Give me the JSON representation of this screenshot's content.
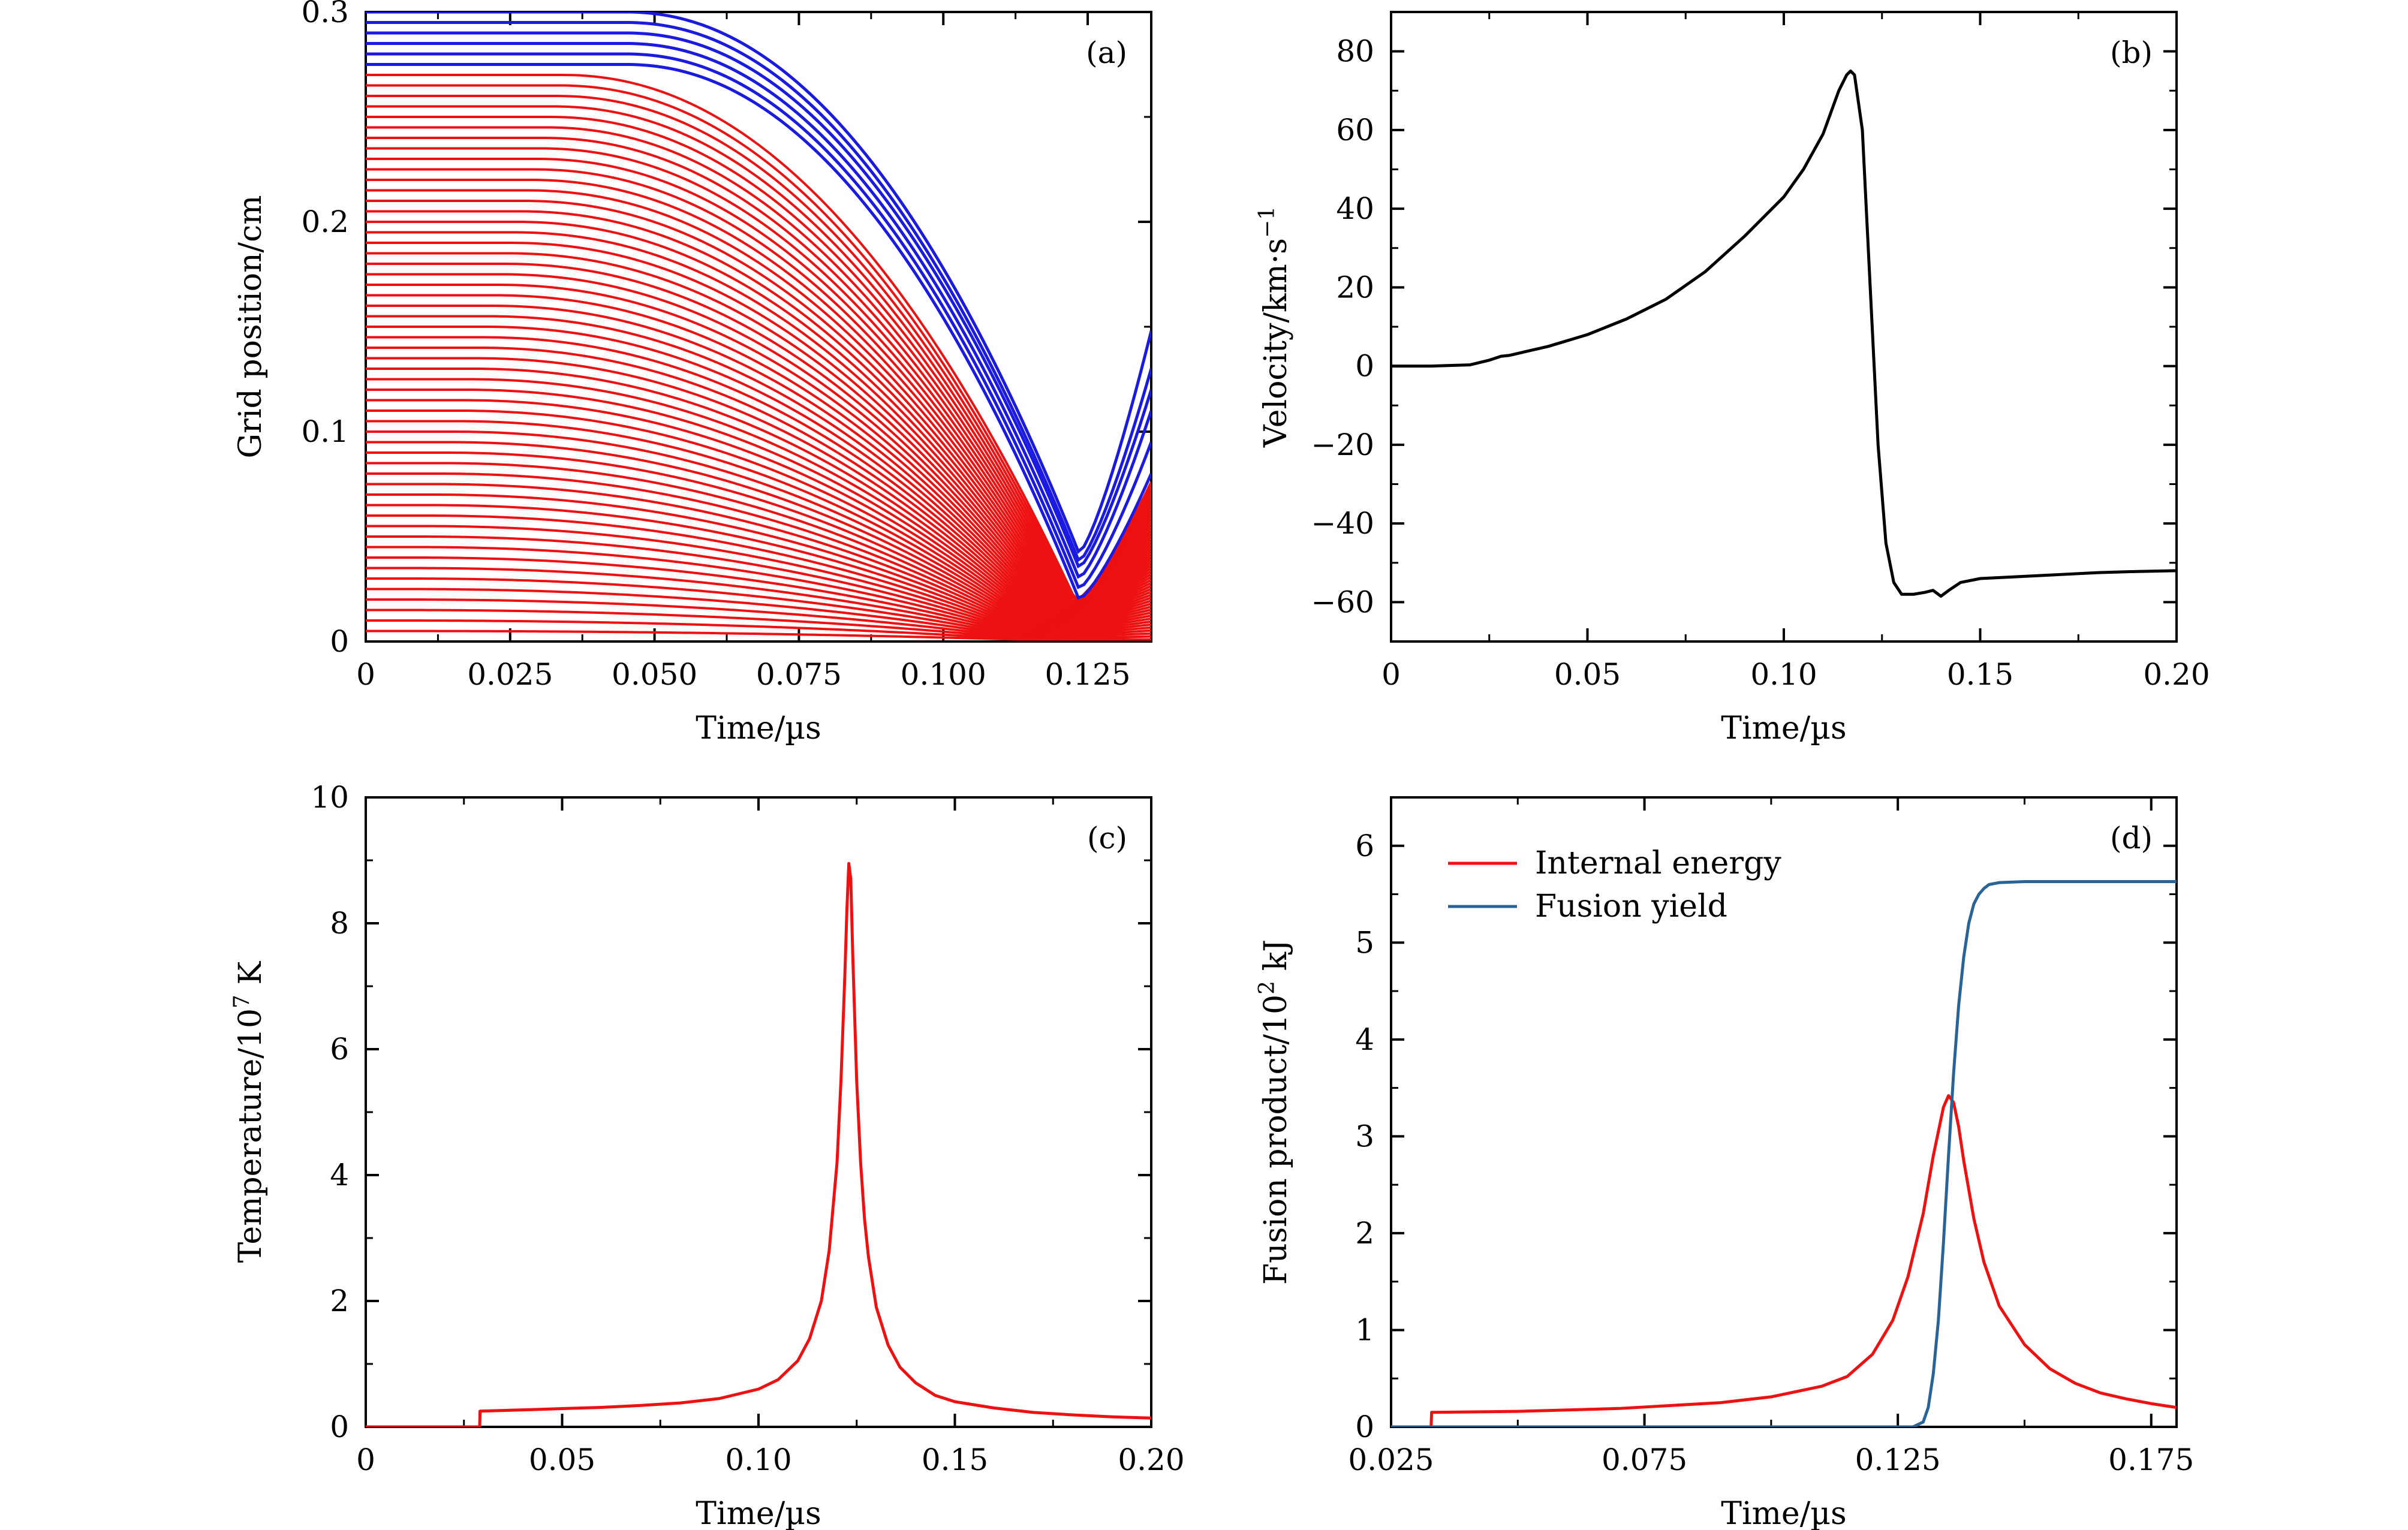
{
  "colors": {
    "red": "#ee1111",
    "blue": "#1a1ae0",
    "black": "#000000",
    "steel_blue": "#2a6496"
  },
  "chart_data": [
    {
      "id": "a",
      "panel_label": "(a)",
      "type": "line",
      "xlabel": "Time/µs",
      "ylabel": "Grid position/cm",
      "xlim": [
        0,
        0.136
      ],
      "ylim": [
        0,
        0.3
      ],
      "xticks": [
        0,
        0.025,
        0.05,
        0.075,
        0.1,
        0.125
      ],
      "xtick_labels": [
        "0",
        "0.025",
        "0.050",
        "0.075",
        "0.100",
        "0.125"
      ],
      "yticks": [
        0,
        0.1,
        0.2,
        0.3
      ],
      "ytick_labels": [
        "0",
        "0.1",
        "0.2",
        "0.3"
      ],
      "grid": false,
      "families": [
        {
          "color": "blue",
          "description_only": true,
          "initial_positions": [
            0.275,
            0.28,
            0.285,
            0.29,
            0.295,
            0.3
          ],
          "min_time": 0.1235,
          "min_positions": [
            0.02,
            0.025,
            0.03,
            0.035,
            0.038,
            0.042
          ],
          "end_positions": [
            0.08,
            0.095,
            0.11,
            0.12,
            0.13,
            0.148
          ]
        },
        {
          "color": "red",
          "initial_positions_range": [
            0.005,
            0.27
          ],
          "line_count": 54,
          "converge_time_start": 0.112,
          "end_max": 0.075
        }
      ]
    },
    {
      "id": "b",
      "panel_label": "(b)",
      "type": "line",
      "xlabel": "Time/µs",
      "ylabel": "Velocity/km·s",
      "ylabel_sup": "−1",
      "xlim": [
        0,
        0.2
      ],
      "ylim": [
        -70,
        90
      ],
      "xticks": [
        0,
        0.05,
        0.1,
        0.15,
        0.2
      ],
      "xtick_labels": [
        "0",
        "0.05",
        "0.10",
        "0.15",
        "0.20"
      ],
      "yticks": [
        -60,
        -40,
        -20,
        0,
        20,
        40,
        60,
        80
      ],
      "ytick_labels": [
        "−60",
        "−40",
        "−20",
        "0",
        "20",
        "40",
        "60",
        "80"
      ],
      "grid": false,
      "series": [
        {
          "color": "black",
          "x": [
            0,
            0.01,
            0.02,
            0.025,
            0.028,
            0.03,
            0.04,
            0.05,
            0.06,
            0.07,
            0.08,
            0.09,
            0.1,
            0.105,
            0.11,
            0.114,
            0.116,
            0.117,
            0.118,
            0.12,
            0.122,
            0.124,
            0.126,
            0.128,
            0.13,
            0.133,
            0.136,
            0.138,
            0.14,
            0.142,
            0.145,
            0.15,
            0.16,
            0.17,
            0.18,
            0.19,
            0.2
          ],
          "y": [
            0,
            0,
            0.3,
            1.5,
            2.5,
            2.7,
            5,
            8,
            12,
            17,
            24,
            33,
            43,
            50,
            59,
            70,
            74,
            75,
            74,
            60,
            20,
            -20,
            -45,
            -55,
            -58,
            -58,
            -57.5,
            -57,
            -58.5,
            -57,
            -55,
            -54,
            -53.5,
            -53,
            -52.5,
            -52.2,
            -52
          ]
        }
      ]
    },
    {
      "id": "c",
      "panel_label": "(c)",
      "type": "line",
      "xlabel": "Time/µs",
      "ylabel": "Temperature/10",
      "ylabel_sup": "7",
      "ylabel_suffix": " K",
      "xlim": [
        0,
        0.2
      ],
      "ylim": [
        0,
        10
      ],
      "xticks": [
        0,
        0.05,
        0.1,
        0.15,
        0.2
      ],
      "xtick_labels": [
        "0",
        "0.05",
        "0.10",
        "0.15",
        "0.20"
      ],
      "yticks": [
        0,
        2,
        4,
        6,
        8,
        10
      ],
      "ytick_labels": [
        "0",
        "2",
        "4",
        "6",
        "8",
        "10"
      ],
      "grid": false,
      "series": [
        {
          "color": "red",
          "x": [
            0,
            0.029,
            0.0291,
            0.04,
            0.05,
            0.06,
            0.07,
            0.08,
            0.09,
            0.1,
            0.105,
            0.11,
            0.113,
            0.116,
            0.118,
            0.12,
            0.121,
            0.122,
            0.1225,
            0.123,
            0.1235,
            0.124,
            0.125,
            0.126,
            0.127,
            0.128,
            0.13,
            0.133,
            0.136,
            0.14,
            0.145,
            0.15,
            0.16,
            0.17,
            0.18,
            0.19,
            0.2
          ],
          "y": [
            0,
            0,
            0.25,
            0.27,
            0.29,
            0.31,
            0.34,
            0.38,
            0.45,
            0.6,
            0.75,
            1.05,
            1.4,
            2.0,
            2.8,
            4.2,
            5.5,
            7.2,
            8.2,
            8.95,
            8.7,
            7.5,
            5.5,
            4.2,
            3.3,
            2.7,
            1.9,
            1.3,
            0.95,
            0.7,
            0.5,
            0.4,
            0.3,
            0.23,
            0.19,
            0.16,
            0.14
          ]
        }
      ]
    },
    {
      "id": "d",
      "panel_label": "(d)",
      "type": "line",
      "xlabel": "Time/µs",
      "ylabel": "Fusion product/10",
      "ylabel_sup": "2",
      "ylabel_suffix": " kJ",
      "xlim": [
        0.025,
        0.18
      ],
      "ylim": [
        0,
        6.5
      ],
      "xticks": [
        0.025,
        0.075,
        0.125,
        0.175
      ],
      "xtick_labels": [
        "0.025",
        "0.075",
        "0.125",
        "0.175"
      ],
      "yticks": [
        0,
        1,
        2,
        3,
        4,
        5,
        6
      ],
      "ytick_labels": [
        "0",
        "1",
        "2",
        "3",
        "4",
        "5",
        "6"
      ],
      "grid": false,
      "legend_position": "top-left",
      "series": [
        {
          "name": "Internal energy",
          "color": "red",
          "x": [
            0.025,
            0.0329,
            0.033,
            0.05,
            0.07,
            0.09,
            0.1,
            0.11,
            0.115,
            0.12,
            0.124,
            0.127,
            0.13,
            0.132,
            0.134,
            0.135,
            0.136,
            0.137,
            0.138,
            0.14,
            0.142,
            0.145,
            0.15,
            0.155,
            0.16,
            0.165,
            0.17,
            0.175,
            0.18
          ],
          "y": [
            0,
            0,
            0.15,
            0.16,
            0.19,
            0.25,
            0.31,
            0.42,
            0.52,
            0.75,
            1.1,
            1.55,
            2.2,
            2.8,
            3.3,
            3.42,
            3.35,
            3.1,
            2.75,
            2.15,
            1.7,
            1.25,
            0.85,
            0.6,
            0.45,
            0.35,
            0.29,
            0.24,
            0.2
          ]
        },
        {
          "name": "Fusion yield",
          "color": "steel_blue",
          "x": [
            0.025,
            0.128,
            0.13,
            0.131,
            0.132,
            0.133,
            0.134,
            0.135,
            0.136,
            0.137,
            0.138,
            0.139,
            0.14,
            0.141,
            0.142,
            0.143,
            0.145,
            0.15,
            0.16,
            0.18
          ],
          "y": [
            0,
            0,
            0.05,
            0.2,
            0.55,
            1.1,
            1.9,
            2.8,
            3.65,
            4.35,
            4.85,
            5.2,
            5.4,
            5.5,
            5.56,
            5.6,
            5.62,
            5.63,
            5.63,
            5.63
          ]
        }
      ]
    }
  ]
}
